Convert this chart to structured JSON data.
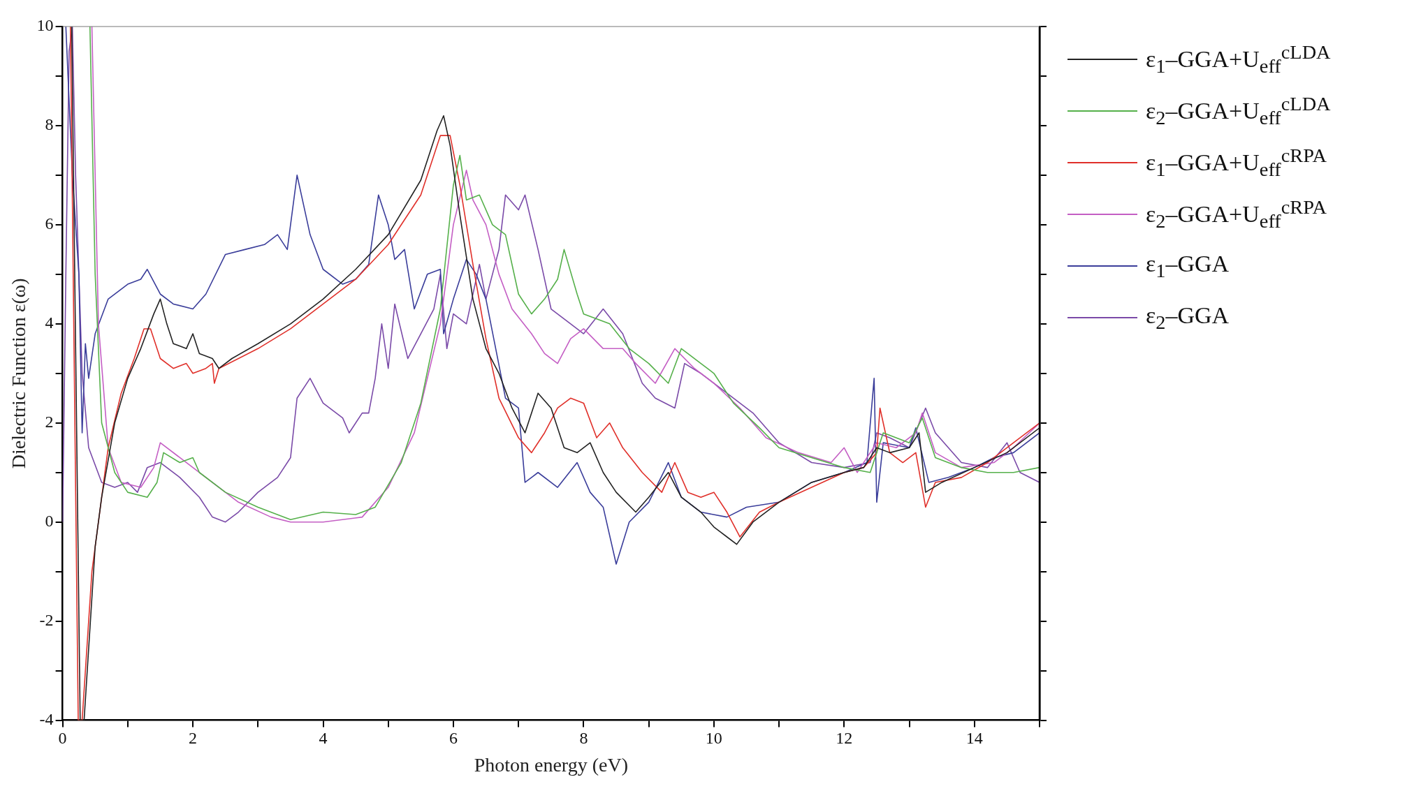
{
  "chart_data": {
    "type": "line",
    "xlabel": "Photon energy (eV)",
    "ylabel": "Dielectric Function ε(ω)",
    "xlim": [
      0,
      15
    ],
    "xticks": [
      0,
      {
        "value": 1,
        "label": null
      },
      2,
      {
        "value": 3,
        "label": null
      },
      4,
      {
        "value": 5,
        "label": null
      },
      6,
      {
        "value": 7,
        "label": null
      },
      8,
      {
        "value": 9,
        "label": null
      },
      10,
      {
        "value": 11,
        "label": null
      },
      12,
      {
        "value": 13,
        "label": null
      },
      14,
      {
        "value": 15,
        "label": null
      }
    ],
    "ylim": [
      -4,
      10
    ],
    "yticks": [
      -4,
      {
        "value": -3,
        "label": null
      },
      -2,
      {
        "value": -1,
        "label": null
      },
      0,
      {
        "value": 1,
        "label": null
      },
      2,
      {
        "value": 3,
        "label": null
      },
      4,
      {
        "value": 5,
        "label": null
      },
      6,
      {
        "value": 7,
        "label": null
      },
      8,
      {
        "value": 9,
        "label": null
      },
      10
    ],
    "grid": false,
    "legend": "right",
    "marker": "none",
    "line_style": "solid",
    "series": [
      {
        "name": "ε$_{1}$–GGA+U$_{eff}$$^{cLDA}$",
        "color": "#222222",
        "x": [
          0.14,
          0.27,
          0.33,
          0.5,
          0.6,
          0.8,
          1.0,
          1.2,
          1.4,
          1.5,
          1.6,
          1.7,
          1.9,
          2.0,
          2.1,
          2.3,
          2.4,
          2.6,
          3,
          3.5,
          4,
          4.5,
          5,
          5.5,
          5.75,
          5.85,
          5.95,
          6.1,
          6.3,
          6.5,
          6.7,
          6.9,
          7.1,
          7.3,
          7.5,
          7.7,
          7.9,
          8.1,
          8.3,
          8.5,
          8.8,
          9,
          9.3,
          9.5,
          9.8,
          10,
          10.2,
          10.35,
          10.6,
          11,
          11.5,
          12,
          12.3,
          12.5,
          12.7,
          13,
          13.15,
          13.25,
          13.5,
          14,
          14.5,
          15
        ],
        "values": [
          10,
          -4,
          -4,
          -0.5,
          0.5,
          2.0,
          2.9,
          3.5,
          4.2,
          4.5,
          4.0,
          3.6,
          3.5,
          3.8,
          3.4,
          3.3,
          3.1,
          3.3,
          3.6,
          4.0,
          4.5,
          5.1,
          5.8,
          6.9,
          7.9,
          8.2,
          7.6,
          6.2,
          4.5,
          3.5,
          3.0,
          2.3,
          1.8,
          2.6,
          2.3,
          1.5,
          1.4,
          1.6,
          1.0,
          0.6,
          0.2,
          0.5,
          1.0,
          0.5,
          0.2,
          -0.1,
          -0.3,
          -0.45,
          0,
          0.4,
          0.8,
          1.0,
          1.1,
          1.5,
          1.4,
          1.5,
          1.8,
          0.6,
          0.8,
          1.1,
          1.4,
          1.9
        ]
      },
      {
        "name": "ε$_{2}$–GGA+U$_{eff}$$^{cLDA}$",
        "color": "#55b04a",
        "x": [
          0.42,
          0.5,
          0.6,
          0.8,
          1.0,
          1.3,
          1.45,
          1.55,
          1.8,
          2.0,
          2.1,
          2.5,
          3.0,
          3.5,
          4.0,
          4.5,
          4.8,
          5.2,
          5.5,
          5.8,
          6.0,
          6.1,
          6.2,
          6.4,
          6.6,
          6.8,
          7.0,
          7.2,
          7.4,
          7.6,
          7.7,
          7.9,
          8.0,
          8.2,
          8.4,
          8.7,
          9.0,
          9.3,
          9.5,
          9.8,
          10.0,
          10.3,
          10.7,
          11,
          11.5,
          12,
          12.4,
          12.6,
          13,
          13.2,
          13.4,
          13.8,
          14.2,
          14.6,
          15
        ],
        "values": [
          10,
          5,
          2,
          1.0,
          0.6,
          0.5,
          0.8,
          1.4,
          1.2,
          1.3,
          1.0,
          0.6,
          0.3,
          0.05,
          0.2,
          0.15,
          0.3,
          1.2,
          2.4,
          4.3,
          6.8,
          7.4,
          6.5,
          6.6,
          6.0,
          5.8,
          4.6,
          4.2,
          4.5,
          4.9,
          5.5,
          4.6,
          4.2,
          4.1,
          4.0,
          3.5,
          3.2,
          2.8,
          3.5,
          3.2,
          3.0,
          2.4,
          1.9,
          1.5,
          1.3,
          1.1,
          1.0,
          1.8,
          1.6,
          2.1,
          1.3,
          1.1,
          1.0,
          1.0,
          1.1
        ]
      },
      {
        "name": "ε$_{1}$–GGA+U$_{eff}$$^{cRPA}$",
        "color": "#e0302a",
        "x": [
          0.12,
          0.24,
          0.3,
          0.45,
          0.55,
          0.7,
          0.9,
          1.1,
          1.25,
          1.35,
          1.5,
          1.7,
          1.9,
          2.0,
          2.2,
          2.3,
          2.33,
          2.4,
          3,
          3.5,
          4,
          4.5,
          5,
          5.5,
          5.8,
          5.95,
          6.1,
          6.3,
          6.5,
          6.7,
          7,
          7.2,
          7.4,
          7.6,
          7.8,
          8,
          8.2,
          8.4,
          8.6,
          8.9,
          9.2,
          9.4,
          9.6,
          9.8,
          10,
          10.2,
          10.4,
          10.7,
          11,
          11.5,
          12,
          12.3,
          12.5,
          12.55,
          12.7,
          12.9,
          13.1,
          13.25,
          13.4,
          13.8,
          14.2,
          14.6,
          15
        ],
        "values": [
          10,
          -4,
          -4,
          -1,
          0,
          1.5,
          2.6,
          3.3,
          3.9,
          3.9,
          3.3,
          3.1,
          3.2,
          3.0,
          3.1,
          3.2,
          2.8,
          3.1,
          3.5,
          3.9,
          4.4,
          4.9,
          5.6,
          6.6,
          7.8,
          7.8,
          6.8,
          5.2,
          3.7,
          2.5,
          1.7,
          1.4,
          1.8,
          2.3,
          2.5,
          2.4,
          1.7,
          2.0,
          1.5,
          1.0,
          0.6,
          1.2,
          0.6,
          0.5,
          0.6,
          0.2,
          -0.3,
          0.2,
          0.4,
          0.7,
          1.0,
          1.1,
          1.4,
          2.3,
          1.4,
          1.2,
          1.4,
          0.3,
          0.8,
          0.9,
          1.2,
          1.6,
          2.0
        ]
      },
      {
        "name": "ε$_{2}$–GGA+U$_{eff}$$^{cRPA}$",
        "color": "#c45ec4",
        "x": [
          0.45,
          0.55,
          0.7,
          0.9,
          1.2,
          1.4,
          1.5,
          1.8,
          2.2,
          2.7,
          3.2,
          3.5,
          4.0,
          4.6,
          5.0,
          5.4,
          5.8,
          6.0,
          6.2,
          6.3,
          6.5,
          6.7,
          6.9,
          7.2,
          7.4,
          7.6,
          7.8,
          8.0,
          8.3,
          8.6,
          8.8,
          9.1,
          9.4,
          9.7,
          10.0,
          10.4,
          10.8,
          11.3,
          11.8,
          12.0,
          12.2,
          12.5,
          12.8,
          13.1,
          13.2,
          13.4,
          13.8,
          14.3,
          14.6,
          15
        ],
        "values": [
          10,
          4,
          1.5,
          0.8,
          0.7,
          1.1,
          1.6,
          1.3,
          0.9,
          0.4,
          0.1,
          0,
          0,
          0.1,
          0.7,
          1.8,
          4.0,
          6.0,
          7.1,
          6.5,
          6.0,
          5.0,
          4.3,
          3.8,
          3.4,
          3.2,
          3.7,
          3.9,
          3.5,
          3.5,
          3.2,
          2.8,
          3.5,
          3.1,
          2.8,
          2.3,
          1.7,
          1.4,
          1.2,
          1.5,
          1.0,
          1.6,
          1.5,
          1.8,
          2.2,
          1.4,
          1.1,
          1.2,
          1.5,
          2.0
        ]
      },
      {
        "name": "ε$_{1}$–GGA",
        "color": "#3a3d9a",
        "x": [
          0.05,
          0.15,
          0.25,
          0.3,
          0.35,
          0.4,
          0.5,
          0.7,
          1.0,
          1.2,
          1.3,
          1.5,
          1.7,
          2.0,
          2.2,
          2.5,
          2.8,
          3.1,
          3.3,
          3.45,
          3.6,
          3.8,
          4.0,
          4.3,
          4.5,
          4.7,
          4.85,
          5.0,
          5.1,
          5.25,
          5.4,
          5.6,
          5.8,
          5.85,
          6.0,
          6.2,
          6.35,
          6.5,
          6.65,
          6.8,
          7.0,
          7.1,
          7.3,
          7.6,
          7.9,
          8.1,
          8.3,
          8.5,
          8.7,
          9.0,
          9.3,
          9.5,
          9.8,
          10.2,
          10.5,
          11,
          11.5,
          12,
          12.35,
          12.46,
          12.5,
          12.6,
          13,
          13.1,
          13.3,
          13.6,
          14,
          14.3,
          14.6,
          15
        ],
        "values": [
          10,
          7,
          5,
          1.8,
          3.6,
          2.9,
          3.8,
          4.5,
          4.8,
          4.9,
          5.1,
          4.6,
          4.4,
          4.3,
          4.6,
          5.4,
          5.5,
          5.6,
          5.8,
          5.5,
          7.0,
          5.8,
          5.1,
          4.8,
          4.9,
          5.2,
          6.6,
          6.0,
          5.3,
          5.5,
          4.3,
          5.0,
          5.1,
          3.8,
          4.5,
          5.3,
          5.0,
          4.5,
          3.5,
          2.5,
          2.3,
          0.8,
          1.0,
          0.7,
          1.2,
          0.6,
          0.3,
          -0.85,
          0,
          0.4,
          1.2,
          0.5,
          0.2,
          0.1,
          0.3,
          0.4,
          0.8,
          1.0,
          1.2,
          2.9,
          0.4,
          1.6,
          1.5,
          1.9,
          0.8,
          0.9,
          1.1,
          1.3,
          1.4,
          1.8
        ]
      },
      {
        "name": "ε$_{2}$–GGA",
        "color": "#7a4aa8",
        "x": [
          0,
          0.05,
          0.1,
          0.15,
          0.2,
          0.3,
          0.4,
          0.6,
          0.8,
          1.0,
          1.15,
          1.3,
          1.5,
          1.8,
          2.1,
          2.3,
          2.5,
          2.7,
          3.0,
          3.3,
          3.5,
          3.6,
          3.8,
          4.0,
          4.3,
          4.4,
          4.6,
          4.7,
          4.8,
          4.9,
          5.0,
          5.1,
          5.3,
          5.5,
          5.7,
          5.8,
          5.9,
          6.0,
          6.2,
          6.4,
          6.5,
          6.7,
          6.8,
          7.0,
          7.1,
          7.3,
          7.5,
          7.8,
          8,
          8.3,
          8.6,
          8.9,
          9.1,
          9.4,
          9.55,
          9.8,
          10.2,
          10.6,
          11,
          11.5,
          12,
          12.4,
          12.5,
          12.7,
          13,
          13.25,
          13.4,
          13.8,
          14.2,
          14.5,
          14.7,
          15
        ],
        "values": [
          0,
          5,
          9.5,
          10,
          7,
          3,
          1.5,
          0.8,
          0.7,
          0.8,
          0.6,
          1.1,
          1.2,
          0.9,
          0.5,
          0.1,
          0,
          0.2,
          0.6,
          0.9,
          1.3,
          2.5,
          2.9,
          2.4,
          2.1,
          1.8,
          2.2,
          2.2,
          2.9,
          4.0,
          3.1,
          4.4,
          3.3,
          3.8,
          4.3,
          5.0,
          3.5,
          4.2,
          4.0,
          5.2,
          4.5,
          5.5,
          6.6,
          6.3,
          6.6,
          5.5,
          4.3,
          4.0,
          3.8,
          4.3,
          3.8,
          2.8,
          2.5,
          2.3,
          3.2,
          3.0,
          2.6,
          2.2,
          1.6,
          1.2,
          1.1,
          1.2,
          1.8,
          1.7,
          1.5,
          2.3,
          1.8,
          1.2,
          1.1,
          1.6,
          1.0,
          0.8
        ]
      }
    ]
  }
}
